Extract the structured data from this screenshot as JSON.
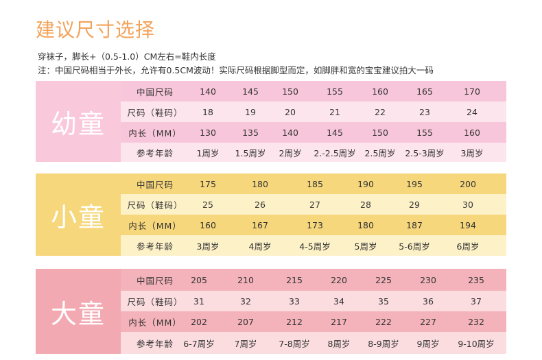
{
  "header": {
    "title": "建议尺寸选择",
    "note1": "穿袜子，脚长+（0.5-1.0）CM左右=鞋内长度",
    "note2": "注：中国尺码相当于外长，允许有0.5CM波动！实际尺码根据脚型而定，如脚胖和宽的宝宝建议拍大一码"
  },
  "row_labels": {
    "cn_size": "中国尺码",
    "shoe_size": "尺码（鞋码）",
    "inner_length": "内长（MM）",
    "age": "参考年龄"
  },
  "colors": {
    "title": "#f2a35a",
    "infant": "#f9c8da",
    "child": "#f6d77c",
    "youth": "#f3a9b2"
  },
  "sections": [
    {
      "label": "幼童",
      "cn_size": [
        "140",
        "145",
        "150",
        "155",
        "160",
        "165",
        "170"
      ],
      "shoe_size": [
        "18",
        "19",
        "20",
        "21",
        "22",
        "23",
        "24"
      ],
      "inner_length": [
        "130",
        "135",
        "140",
        "145",
        "150",
        "155",
        "160"
      ],
      "age": [
        "1周岁",
        "1.5周岁",
        "2周岁",
        "2.-2.5周岁",
        "2.5周岁",
        "2.5-3周岁",
        "3周岁"
      ]
    },
    {
      "label": "小童",
      "cn_size": [
        "175",
        "180",
        "185",
        "190",
        "195",
        "200"
      ],
      "shoe_size": [
        "25",
        "26",
        "27",
        "28",
        "29",
        "30"
      ],
      "inner_length": [
        "160",
        "167",
        "173",
        "180",
        "187",
        "194"
      ],
      "age": [
        "3周岁",
        "4周岁",
        "4-5周岁",
        "5周岁",
        "5-6周岁",
        "6周岁"
      ]
    },
    {
      "label": "大童",
      "cn_size": [
        "205",
        "210",
        "215",
        "220",
        "225",
        "230",
        "235"
      ],
      "shoe_size": [
        "31",
        "32",
        "33",
        "34",
        "35",
        "36",
        "37"
      ],
      "inner_length": [
        "202",
        "207",
        "212",
        "217",
        "222",
        "227",
        "232"
      ],
      "age": [
        "6-7周岁",
        "7周岁",
        "7-8周岁",
        "8周岁",
        "8-9周岁",
        "9周岁",
        "9-10周岁"
      ]
    }
  ]
}
